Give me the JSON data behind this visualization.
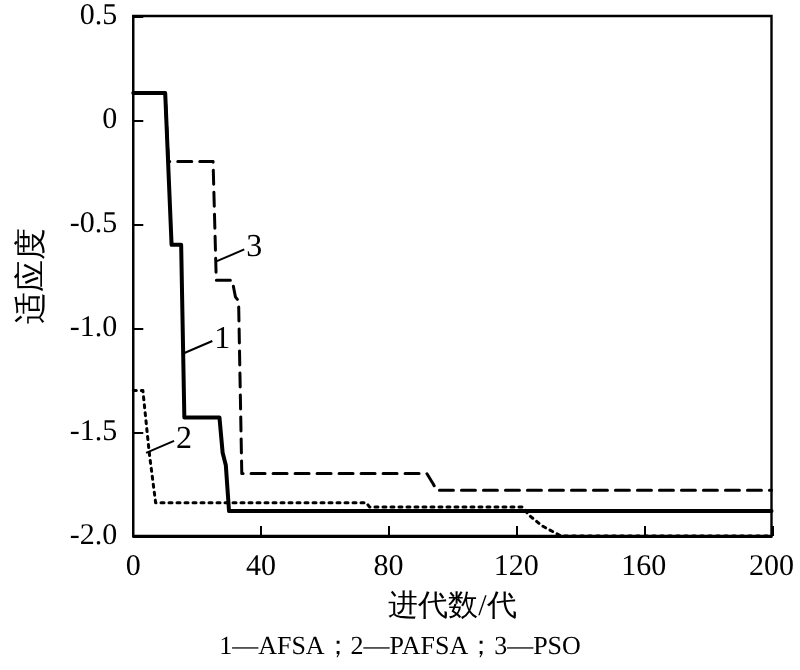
{
  "chart_data": {
    "type": "line",
    "xlabel": "进代数/代",
    "ylabel": "适应度",
    "series": [
      {
        "color": "#000000",
        "line_style": "solid",
        "x": [
          0,
          10,
          12,
          15,
          16,
          27,
          28,
          29,
          30,
          200
        ],
        "values": [
          0.13,
          0.13,
          -0.6,
          -0.6,
          -1.43,
          -1.43,
          -1.6,
          -1.66,
          -1.88,
          -1.88
        ]
      },
      {
        "color": "#000000",
        "line_style": "dotted",
        "x": [
          0,
          3,
          5,
          7,
          73,
          74,
          122,
          124,
          128,
          134,
          200
        ],
        "values": [
          -1.3,
          -1.3,
          -1.6,
          -1.84,
          -1.84,
          -1.86,
          -1.86,
          -1.9,
          -1.95,
          -2.0,
          -2.0
        ]
      },
      {
        "color": "#000000",
        "line_style": "dashed",
        "x": [
          0,
          10,
          11,
          25,
          26,
          31,
          32,
          33,
          34,
          92,
          94,
          95,
          200
        ],
        "values": [
          0.13,
          0.13,
          -0.2,
          -0.2,
          -0.77,
          -0.77,
          -0.85,
          -0.87,
          -1.7,
          -1.7,
          -1.75,
          -1.78,
          -1.78
        ]
      }
    ],
    "xlim": [
      0,
      200
    ],
    "xticks": [
      0,
      40,
      80,
      120,
      160,
      200
    ],
    "ylim": [
      -2.0,
      0.5
    ],
    "yticks": [
      {
        "value": -2.0,
        "label": "-2.0"
      },
      {
        "value": -1.5,
        "label": "-1.5"
      },
      {
        "value": -1.0,
        "label": "-1.0"
      },
      {
        "value": -0.5,
        "label": "-0.5"
      },
      0,
      0.5
    ],
    "grid": false,
    "marker": "none",
    "annotations": [
      {
        "text": "1",
        "x": 16,
        "y": -1.12
      },
      {
        "text": "2",
        "x": 4,
        "y": -1.6
      },
      {
        "text": "3",
        "x": 26,
        "y": -0.68
      },
      "1—AFSA；2—PAFSA；3—PSO"
    ]
  }
}
